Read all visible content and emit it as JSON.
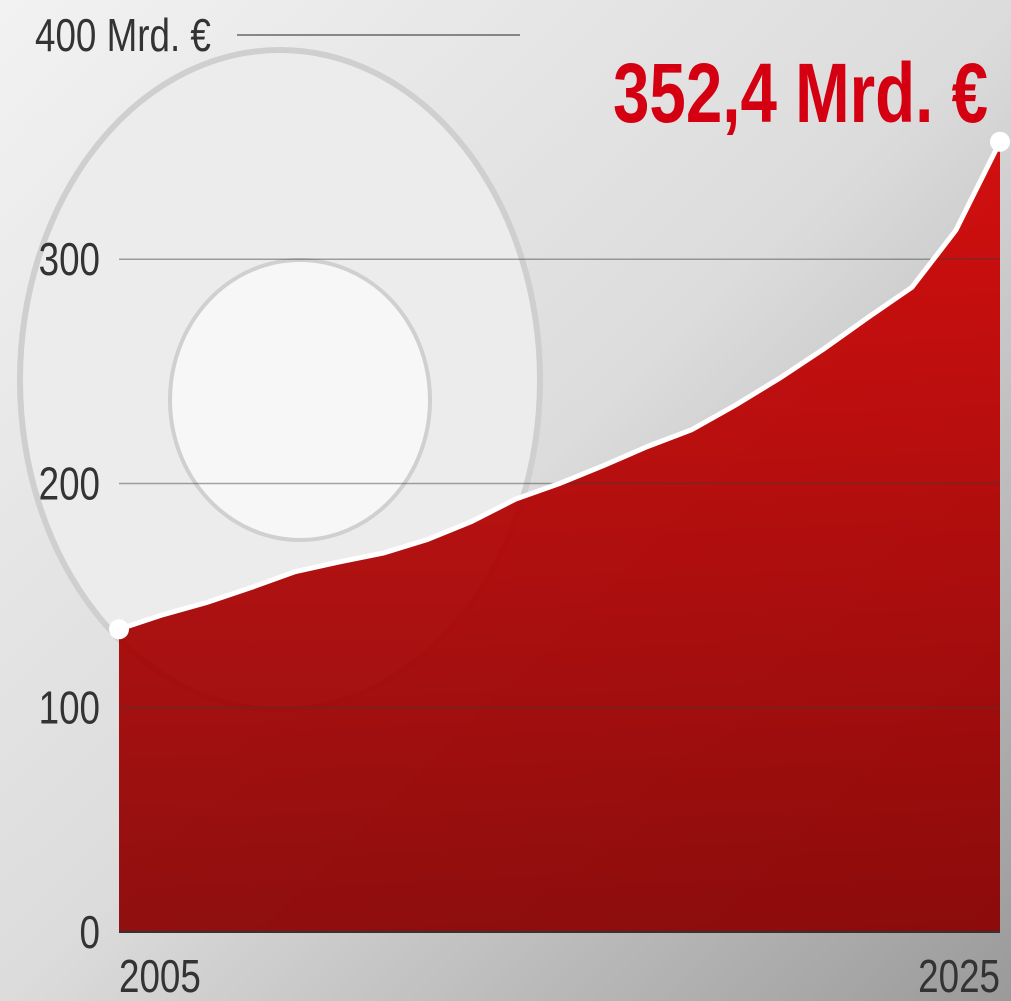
{
  "chart_data": {
    "type": "area",
    "x": [
      2005,
      2006,
      2007,
      2008,
      2009,
      2010,
      2011,
      2012,
      2013,
      2014,
      2015,
      2016,
      2017,
      2018,
      2019,
      2020,
      2021,
      2022,
      2023,
      2024,
      2025
    ],
    "values": [
      135,
      141.5,
      147,
      153.6,
      160.7,
      165,
      169,
      175,
      183,
      193,
      200,
      208,
      216.5,
      224,
      235,
      247,
      260,
      274,
      287.5,
      313,
      352.4
    ],
    "value_labels": [
      null,
      null,
      null,
      null,
      null,
      null,
      null,
      null,
      null,
      null,
      null,
      null,
      null,
      null,
      null,
      null,
      null,
      null,
      null,
      null,
      "352,4 Mrd. €"
    ],
    "color": "#c40000",
    "line_color": "#ffffff",
    "xlim": [
      2005,
      2025
    ],
    "xticks": [
      2005,
      2025
    ],
    "ylim": [
      0,
      400
    ],
    "yticks": [
      0,
      100,
      200,
      300,
      {
        "value": 400,
        "label": "400 Mrd. €"
      }
    ],
    "grid": true
  }
}
